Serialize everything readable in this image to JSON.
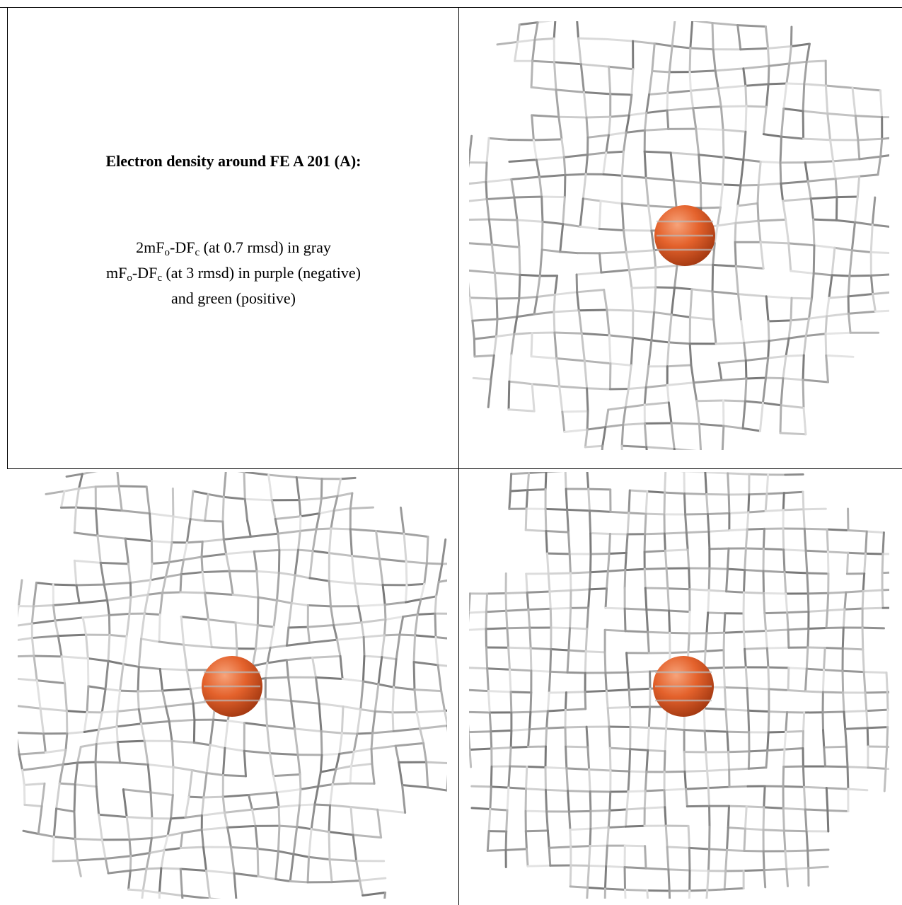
{
  "caption": {
    "title": "Electron density around FE A 201 (A):",
    "lines": [
      [
        "2mF",
        "o",
        "-DF",
        "c",
        " (at 0.7 rmsd) in gray"
      ],
      [
        "mF",
        "o",
        "-DF",
        "c",
        " (at 3 rmsd) in purple (negative)"
      ],
      [
        "and green (positive)"
      ]
    ]
  }
}
